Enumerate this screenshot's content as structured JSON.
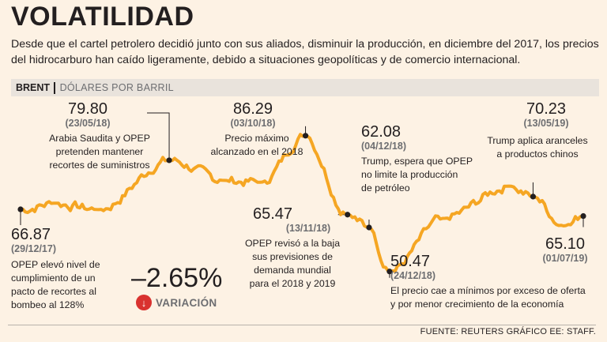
{
  "header": {
    "title": "VOLATILIDAD",
    "subtitle": "Desde que el cartel petrolero decidió junto con sus aliados, disminuir la producción, en diciembre del 2017, los precios del hidrocarburo han caído ligeramente, debido a situaciones geopolíticas y de comercio internacional."
  },
  "bar": {
    "series": "BRENT",
    "unit": "DÓLARES POR BARRIL"
  },
  "variation": {
    "value": "–2.65%",
    "arrow": "↓",
    "label": "VARIACIÓN"
  },
  "source": "FUENTE: REUTERS GRÁFICO EE: STAFF.",
  "colors": {
    "line": "#f5a623",
    "background": "#fdf2e4",
    "accent": "#d9322f",
    "dot": "#231f20"
  },
  "annotations": [
    {
      "id": "start",
      "value": "66.87",
      "date": "(29/12/17)",
      "note1": "OPEP elevó nivel de",
      "note2": "cumplimiento de un",
      "note3": "pacto de recortes al",
      "note4": "bombeo al 128%"
    },
    {
      "id": "may18",
      "value": "79.80",
      "date": "(23/05/18)",
      "note1": "Arabia Saudita y OPEP",
      "note2": "pretenden mantener",
      "note3": "recortes de suministros"
    },
    {
      "id": "oct18",
      "value": "86.29",
      "date": "(03/10/18)",
      "note1": "Precio máximo",
      "note2": "alcanzado en el 2018"
    },
    {
      "id": "nov18",
      "value": "65.47",
      "date": "(13/11/18)",
      "note1": "OPEP revisó a la baja",
      "note2": "sus previsiones de",
      "note3": "demanda mundial",
      "note4": "para el 2018 y 2019"
    },
    {
      "id": "dec4",
      "value": "62.08",
      "date": "(04/12/18)",
      "note1": "Trump, espera que OPEP",
      "note2": "no limite la producción",
      "note3": "de petróleo"
    },
    {
      "id": "dec24",
      "value": "50.47",
      "date": "(24/12/18)",
      "note1": "El precio cae a mínimos por exceso de oferta",
      "note2": "y por menor crecimiento de la economía"
    },
    {
      "id": "may19",
      "value": "70.23",
      "date": "(13/05/19)",
      "note1": "Trump aplica aranceles",
      "note2": "a productos chinos"
    },
    {
      "id": "end",
      "value": "65.10",
      "date": "(01/07/19)"
    }
  ],
  "chart_data": {
    "type": "line",
    "title": "VOLATILIDAD",
    "ylabel": "DÓLARES POR BARRIL",
    "series": [
      {
        "name": "BRENT",
        "x": [
          "2017-12-29",
          "2018-02-01",
          "2018-03-15",
          "2018-05-23",
          "2018-07-15",
          "2018-08-20",
          "2018-10-03",
          "2018-11-13",
          "2018-12-04",
          "2018-12-24",
          "2019-02-15",
          "2019-04-20",
          "2019-05-13",
          "2019-06-12",
          "2019-07-01"
        ],
        "values": [
          66.87,
          68.5,
          66.8,
          79.8,
          74.5,
          74.0,
          86.29,
          65.47,
          62.08,
          50.47,
          64.5,
          73.0,
          70.23,
          62.5,
          65.1
        ]
      }
    ],
    "x_range": [
      "2017-12-29",
      "2019-07-01"
    ],
    "ylim": [
      45,
      95
    ],
    "key_points": [
      {
        "date": "2017-12-29",
        "value": 66.87
      },
      {
        "date": "2018-05-23",
        "value": 79.8
      },
      {
        "date": "2018-10-03",
        "value": 86.29
      },
      {
        "date": "2018-11-13",
        "value": 65.47
      },
      {
        "date": "2018-12-04",
        "value": 62.08
      },
      {
        "date": "2018-12-24",
        "value": 50.47
      },
      {
        "date": "2019-05-13",
        "value": 70.23
      },
      {
        "date": "2019-07-01",
        "value": 65.1
      }
    ]
  }
}
